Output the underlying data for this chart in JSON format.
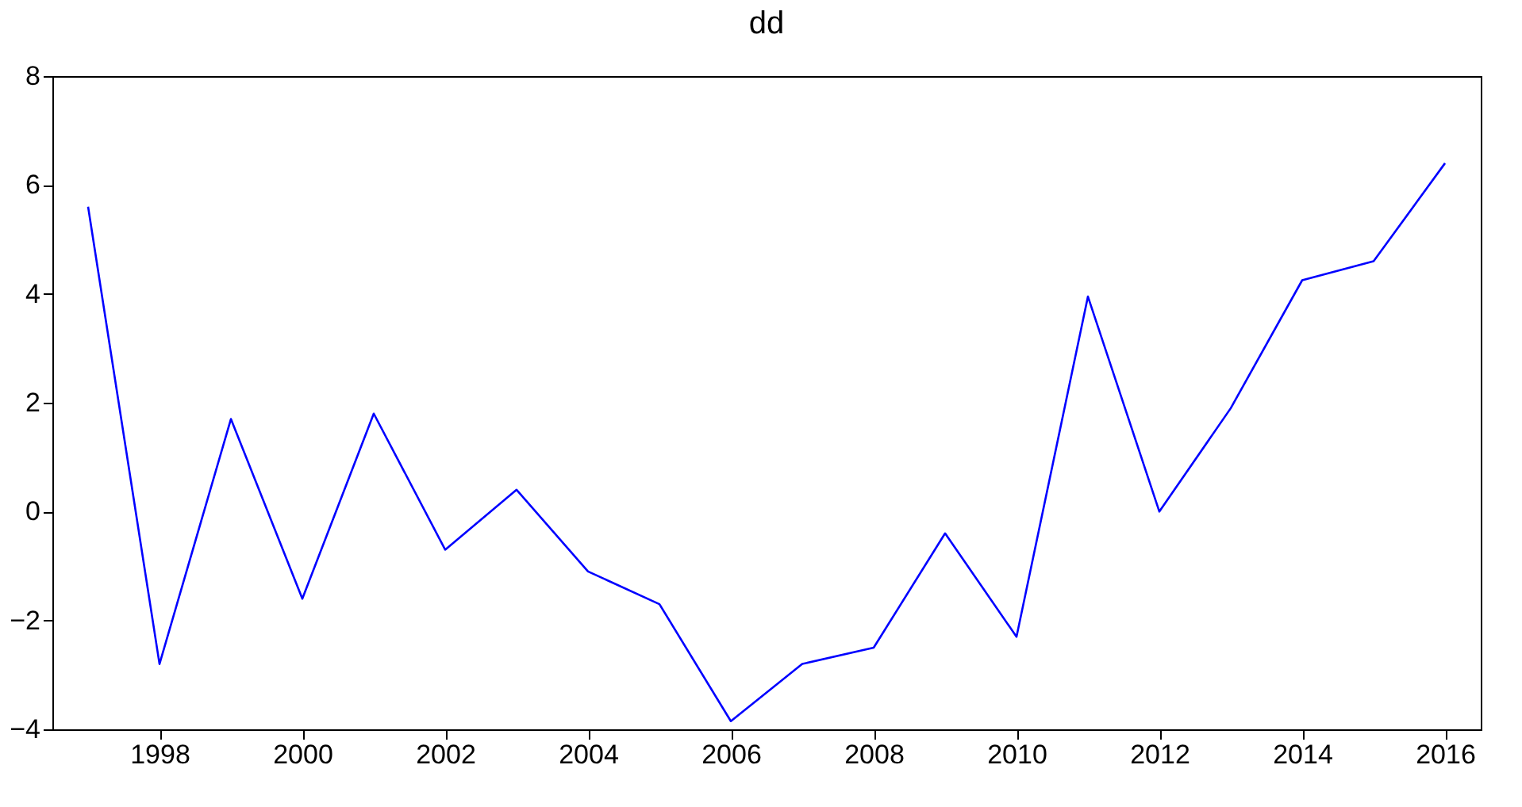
{
  "chart_data": {
    "type": "line",
    "title": "dd",
    "x": [
      1997,
      1998,
      1999,
      2000,
      2001,
      2002,
      2003,
      2004,
      2005,
      2006,
      2007,
      2008,
      2009,
      2010,
      2011,
      2012,
      2013,
      2014,
      2015,
      2016
    ],
    "series": [
      {
        "color": "#0000ff",
        "values": [
          5.6,
          -2.8,
          1.7,
          -1.6,
          1.8,
          -0.7,
          0.4,
          -1.1,
          -1.7,
          -3.85,
          -2.8,
          -2.5,
          -0.4,
          -2.3,
          3.95,
          0.0,
          1.9,
          4.25,
          4.6,
          6.4
        ]
      }
    ],
    "xlim": [
      1996.5,
      2016.5
    ],
    "xticks": [
      1998,
      2000,
      2002,
      2004,
      2006,
      2008,
      2010,
      2012,
      2014,
      2016
    ],
    "ylim": [
      -4,
      8
    ],
    "yticks": [
      -4,
      -2,
      0,
      2,
      4,
      6,
      8
    ],
    "grid": false,
    "marker": "none",
    "line_style": "solid"
  }
}
